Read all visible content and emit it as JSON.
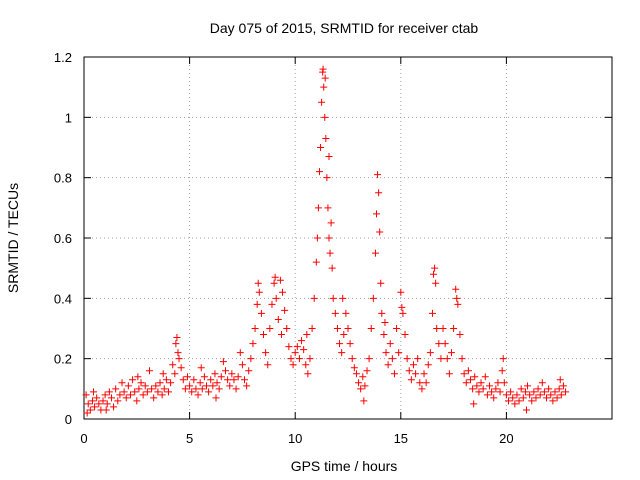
{
  "chart_data": {
    "type": "scatter",
    "title": "Day 075 of 2015, SRMTID for receiver ctab",
    "xlabel": "GPS time / hours",
    "ylabel": "SRMTID / TECUs",
    "xlim": [
      0,
      25
    ],
    "ylim": [
      0,
      1.2
    ],
    "x_ticks": [
      0,
      5,
      10,
      15,
      20
    ],
    "x_tick_labels": [
      "0",
      "5",
      "10",
      "15",
      "20"
    ],
    "y_ticks": [
      0,
      0.2,
      0.4,
      0.6,
      0.8,
      1,
      1.2
    ],
    "y_tick_labels": [
      "0",
      "0.2",
      "0.4",
      "0.6",
      "0.8",
      "1",
      "1.2"
    ],
    "grid": true,
    "marker": "+",
    "series": [
      {
        "name": "SRMTID",
        "color": "#ff0000",
        "points": [
          [
            0.1,
            0.08
          ],
          [
            0.2,
            0.05
          ],
          [
            0.3,
            0.03
          ],
          [
            0.4,
            0.06
          ],
          [
            0.5,
            0.04
          ],
          [
            0.6,
            0.07
          ],
          [
            0.7,
            0.05
          ],
          [
            0.8,
            0.03
          ],
          [
            0.9,
            0.06
          ],
          [
            1.0,
            0.08
          ],
          [
            1.1,
            0.05
          ],
          [
            1.2,
            0.09
          ],
          [
            1.3,
            0.07
          ],
          [
            1.4,
            0.04
          ],
          [
            1.5,
            0.1
          ],
          [
            1.6,
            0.06
          ],
          [
            1.7,
            0.08
          ],
          [
            1.8,
            0.12
          ],
          [
            1.9,
            0.09
          ],
          [
            2.0,
            0.07
          ],
          [
            2.1,
            0.11
          ],
          [
            2.2,
            0.08
          ],
          [
            2.3,
            0.13
          ],
          [
            2.4,
            0.09
          ],
          [
            2.5,
            0.06
          ],
          [
            2.6,
            0.1
          ],
          [
            2.7,
            0.12
          ],
          [
            2.8,
            0.08
          ],
          [
            2.9,
            0.11
          ],
          [
            3.0,
            0.09
          ],
          [
            3.1,
            0.16
          ],
          [
            3.2,
            0.1
          ],
          [
            3.3,
            0.07
          ],
          [
            3.4,
            0.11
          ],
          [
            3.5,
            0.09
          ],
          [
            3.6,
            0.12
          ],
          [
            3.7,
            0.08
          ],
          [
            3.8,
            0.1
          ],
          [
            3.9,
            0.13
          ],
          [
            4.0,
            0.09
          ],
          [
            4.1,
            0.12
          ],
          [
            4.2,
            0.18
          ],
          [
            4.3,
            0.15
          ],
          [
            4.35,
            0.25
          ],
          [
            4.4,
            0.27
          ],
          [
            4.45,
            0.22
          ],
          [
            4.5,
            0.2
          ],
          [
            4.6,
            0.17
          ],
          [
            4.7,
            0.13
          ],
          [
            4.8,
            0.1
          ],
          [
            4.9,
            0.14
          ],
          [
            5.0,
            0.11
          ],
          [
            5.1,
            0.09
          ],
          [
            5.2,
            0.13
          ],
          [
            5.3,
            0.1
          ],
          [
            5.4,
            0.08
          ],
          [
            5.5,
            0.12
          ],
          [
            5.6,
            0.1
          ],
          [
            5.7,
            0.14
          ],
          [
            5.8,
            0.11
          ],
          [
            5.9,
            0.09
          ],
          [
            6.0,
            0.13
          ],
          [
            6.1,
            0.11
          ],
          [
            6.2,
            0.15
          ],
          [
            6.3,
            0.12
          ],
          [
            6.4,
            0.1
          ],
          [
            6.5,
            0.14
          ],
          [
            6.6,
            0.19
          ],
          [
            6.7,
            0.16
          ],
          [
            6.8,
            0.13
          ],
          [
            6.9,
            0.11
          ],
          [
            7.0,
            0.15
          ],
          [
            7.1,
            0.13
          ],
          [
            7.2,
            0.1
          ],
          [
            7.3,
            0.14
          ],
          [
            7.4,
            0.22
          ],
          [
            7.5,
            0.18
          ],
          [
            7.6,
            0.13
          ],
          [
            7.7,
            0.11
          ],
          [
            7.8,
            0.16
          ],
          [
            7.9,
            0.2
          ],
          [
            8.0,
            0.25
          ],
          [
            8.1,
            0.3
          ],
          [
            8.2,
            0.38
          ],
          [
            8.3,
            0.42
          ],
          [
            8.4,
            0.35
          ],
          [
            8.5,
            0.28
          ],
          [
            8.6,
            0.22
          ],
          [
            8.7,
            0.18
          ],
          [
            8.8,
            0.3
          ],
          [
            8.9,
            0.38
          ],
          [
            9.0,
            0.45
          ],
          [
            9.1,
            0.4
          ],
          [
            9.2,
            0.33
          ],
          [
            9.3,
            0.46
          ],
          [
            9.4,
            0.42
          ],
          [
            9.5,
            0.36
          ],
          [
            9.6,
            0.3
          ],
          [
            9.7,
            0.24
          ],
          [
            9.8,
            0.2
          ],
          [
            9.9,
            0.18
          ],
          [
            10.0,
            0.22
          ],
          [
            10.1,
            0.24
          ],
          [
            10.2,
            0.2
          ],
          [
            10.3,
            0.26
          ],
          [
            10.4,
            0.23
          ],
          [
            10.5,
            0.18
          ],
          [
            10.6,
            0.15
          ],
          [
            10.7,
            0.2
          ],
          [
            10.8,
            0.3
          ],
          [
            10.9,
            0.4
          ],
          [
            11.0,
            0.52
          ],
          [
            11.05,
            0.6
          ],
          [
            11.1,
            0.7
          ],
          [
            11.15,
            0.82
          ],
          [
            11.2,
            0.9
          ],
          [
            11.25,
            1.05
          ],
          [
            11.3,
            1.15
          ],
          [
            11.35,
            1.1
          ],
          [
            11.4,
            1.0
          ],
          [
            11.45,
            0.93
          ],
          [
            11.5,
            0.8
          ],
          [
            11.55,
            0.7
          ],
          [
            11.6,
            0.6
          ],
          [
            11.65,
            0.55
          ],
          [
            11.7,
            0.65
          ],
          [
            11.75,
            0.5
          ],
          [
            11.8,
            0.4
          ],
          [
            11.9,
            0.35
          ],
          [
            12.0,
            0.3
          ],
          [
            12.1,
            0.25
          ],
          [
            12.2,
            0.22
          ],
          [
            12.3,
            0.28
          ],
          [
            12.4,
            0.35
          ],
          [
            12.5,
            0.3
          ],
          [
            12.6,
            0.25
          ],
          [
            12.7,
            0.2
          ],
          [
            12.8,
            0.17
          ],
          [
            12.9,
            0.15
          ],
          [
            13.0,
            0.12
          ],
          [
            13.1,
            0.1
          ],
          [
            13.2,
            0.14
          ],
          [
            13.3,
            0.11
          ],
          [
            13.4,
            0.16
          ],
          [
            13.5,
            0.2
          ],
          [
            13.6,
            0.3
          ],
          [
            13.7,
            0.4
          ],
          [
            13.8,
            0.55
          ],
          [
            13.85,
            0.68
          ],
          [
            13.9,
            0.81
          ],
          [
            13.95,
            0.75
          ],
          [
            14.0,
            0.62
          ],
          [
            14.05,
            0.45
          ],
          [
            14.1,
            0.35
          ],
          [
            14.2,
            0.28
          ],
          [
            14.3,
            0.22
          ],
          [
            14.4,
            0.18
          ],
          [
            14.5,
            0.25
          ],
          [
            14.6,
            0.2
          ],
          [
            14.7,
            0.15
          ],
          [
            14.8,
            0.3
          ],
          [
            14.9,
            0.22
          ],
          [
            15.0,
            0.42
          ],
          [
            15.1,
            0.35
          ],
          [
            15.2,
            0.28
          ],
          [
            15.3,
            0.2
          ],
          [
            15.4,
            0.16
          ],
          [
            15.5,
            0.13
          ],
          [
            15.6,
            0.18
          ],
          [
            15.7,
            0.15
          ],
          [
            15.8,
            0.2
          ],
          [
            15.9,
            0.12
          ],
          [
            16.0,
            0.1
          ],
          [
            16.1,
            0.15
          ],
          [
            16.2,
            0.12
          ],
          [
            16.3,
            0.18
          ],
          [
            16.4,
            0.22
          ],
          [
            16.5,
            0.35
          ],
          [
            16.6,
            0.5
          ],
          [
            16.65,
            0.45
          ],
          [
            16.7,
            0.3
          ],
          [
            16.8,
            0.25
          ],
          [
            16.9,
            0.2
          ],
          [
            17.0,
            0.3
          ],
          [
            17.1,
            0.25
          ],
          [
            17.2,
            0.2
          ],
          [
            17.3,
            0.15
          ],
          [
            17.4,
            0.22
          ],
          [
            17.5,
            0.3
          ],
          [
            17.6,
            0.43
          ],
          [
            17.7,
            0.38
          ],
          [
            17.8,
            0.28
          ],
          [
            17.9,
            0.2
          ],
          [
            18.0,
            0.15
          ],
          [
            18.1,
            0.12
          ],
          [
            18.2,
            0.16
          ],
          [
            18.3,
            0.13
          ],
          [
            18.4,
            0.1
          ],
          [
            18.5,
            0.14
          ],
          [
            18.6,
            0.11
          ],
          [
            18.7,
            0.09
          ],
          [
            18.8,
            0.12
          ],
          [
            18.9,
            0.1
          ],
          [
            19.0,
            0.14
          ],
          [
            19.1,
            0.08
          ],
          [
            19.2,
            0.11
          ],
          [
            19.3,
            0.09
          ],
          [
            19.4,
            0.07
          ],
          [
            19.5,
            0.1
          ],
          [
            19.6,
            0.12
          ],
          [
            19.7,
            0.09
          ],
          [
            19.8,
            0.16
          ],
          [
            19.9,
            0.12
          ],
          [
            20.0,
            0.08
          ],
          [
            20.1,
            0.06
          ],
          [
            20.2,
            0.09
          ],
          [
            20.3,
            0.07
          ],
          [
            20.4,
            0.05
          ],
          [
            20.5,
            0.08
          ],
          [
            20.6,
            0.06
          ],
          [
            20.7,
            0.1
          ],
          [
            20.8,
            0.07
          ],
          [
            20.9,
            0.09
          ],
          [
            21.0,
            0.11
          ],
          [
            21.1,
            0.08
          ],
          [
            21.2,
            0.06
          ],
          [
            21.3,
            0.09
          ],
          [
            21.4,
            0.07
          ],
          [
            21.5,
            0.1
          ],
          [
            21.6,
            0.08
          ],
          [
            21.7,
            0.12
          ],
          [
            21.8,
            0.09
          ],
          [
            21.9,
            0.07
          ],
          [
            22.0,
            0.1
          ],
          [
            22.1,
            0.08
          ],
          [
            22.2,
            0.06
          ],
          [
            22.3,
            0.09
          ],
          [
            22.4,
            0.07
          ],
          [
            22.5,
            0.1
          ],
          [
            22.6,
            0.08
          ],
          [
            22.7,
            0.11
          ],
          [
            22.8,
            0.09
          ],
          [
            0.15,
            0.02
          ],
          [
            0.45,
            0.09
          ],
          [
            1.05,
            0.03
          ],
          [
            2.55,
            0.14
          ],
          [
            3.75,
            0.15
          ],
          [
            5.55,
            0.17
          ],
          [
            6.25,
            0.07
          ],
          [
            8.25,
            0.45
          ],
          [
            9.05,
            0.47
          ],
          [
            9.35,
            0.28
          ],
          [
            10.55,
            0.28
          ],
          [
            11.32,
            1.16
          ],
          [
            11.42,
            1.13
          ],
          [
            11.6,
            0.87
          ],
          [
            12.25,
            0.4
          ],
          [
            13.25,
            0.06
          ],
          [
            14.25,
            0.32
          ],
          [
            15.05,
            0.37
          ],
          [
            16.55,
            0.48
          ],
          [
            17.65,
            0.4
          ],
          [
            18.45,
            0.05
          ],
          [
            19.85,
            0.2
          ],
          [
            20.95,
            0.03
          ],
          [
            22.55,
            0.13
          ]
        ]
      }
    ]
  }
}
